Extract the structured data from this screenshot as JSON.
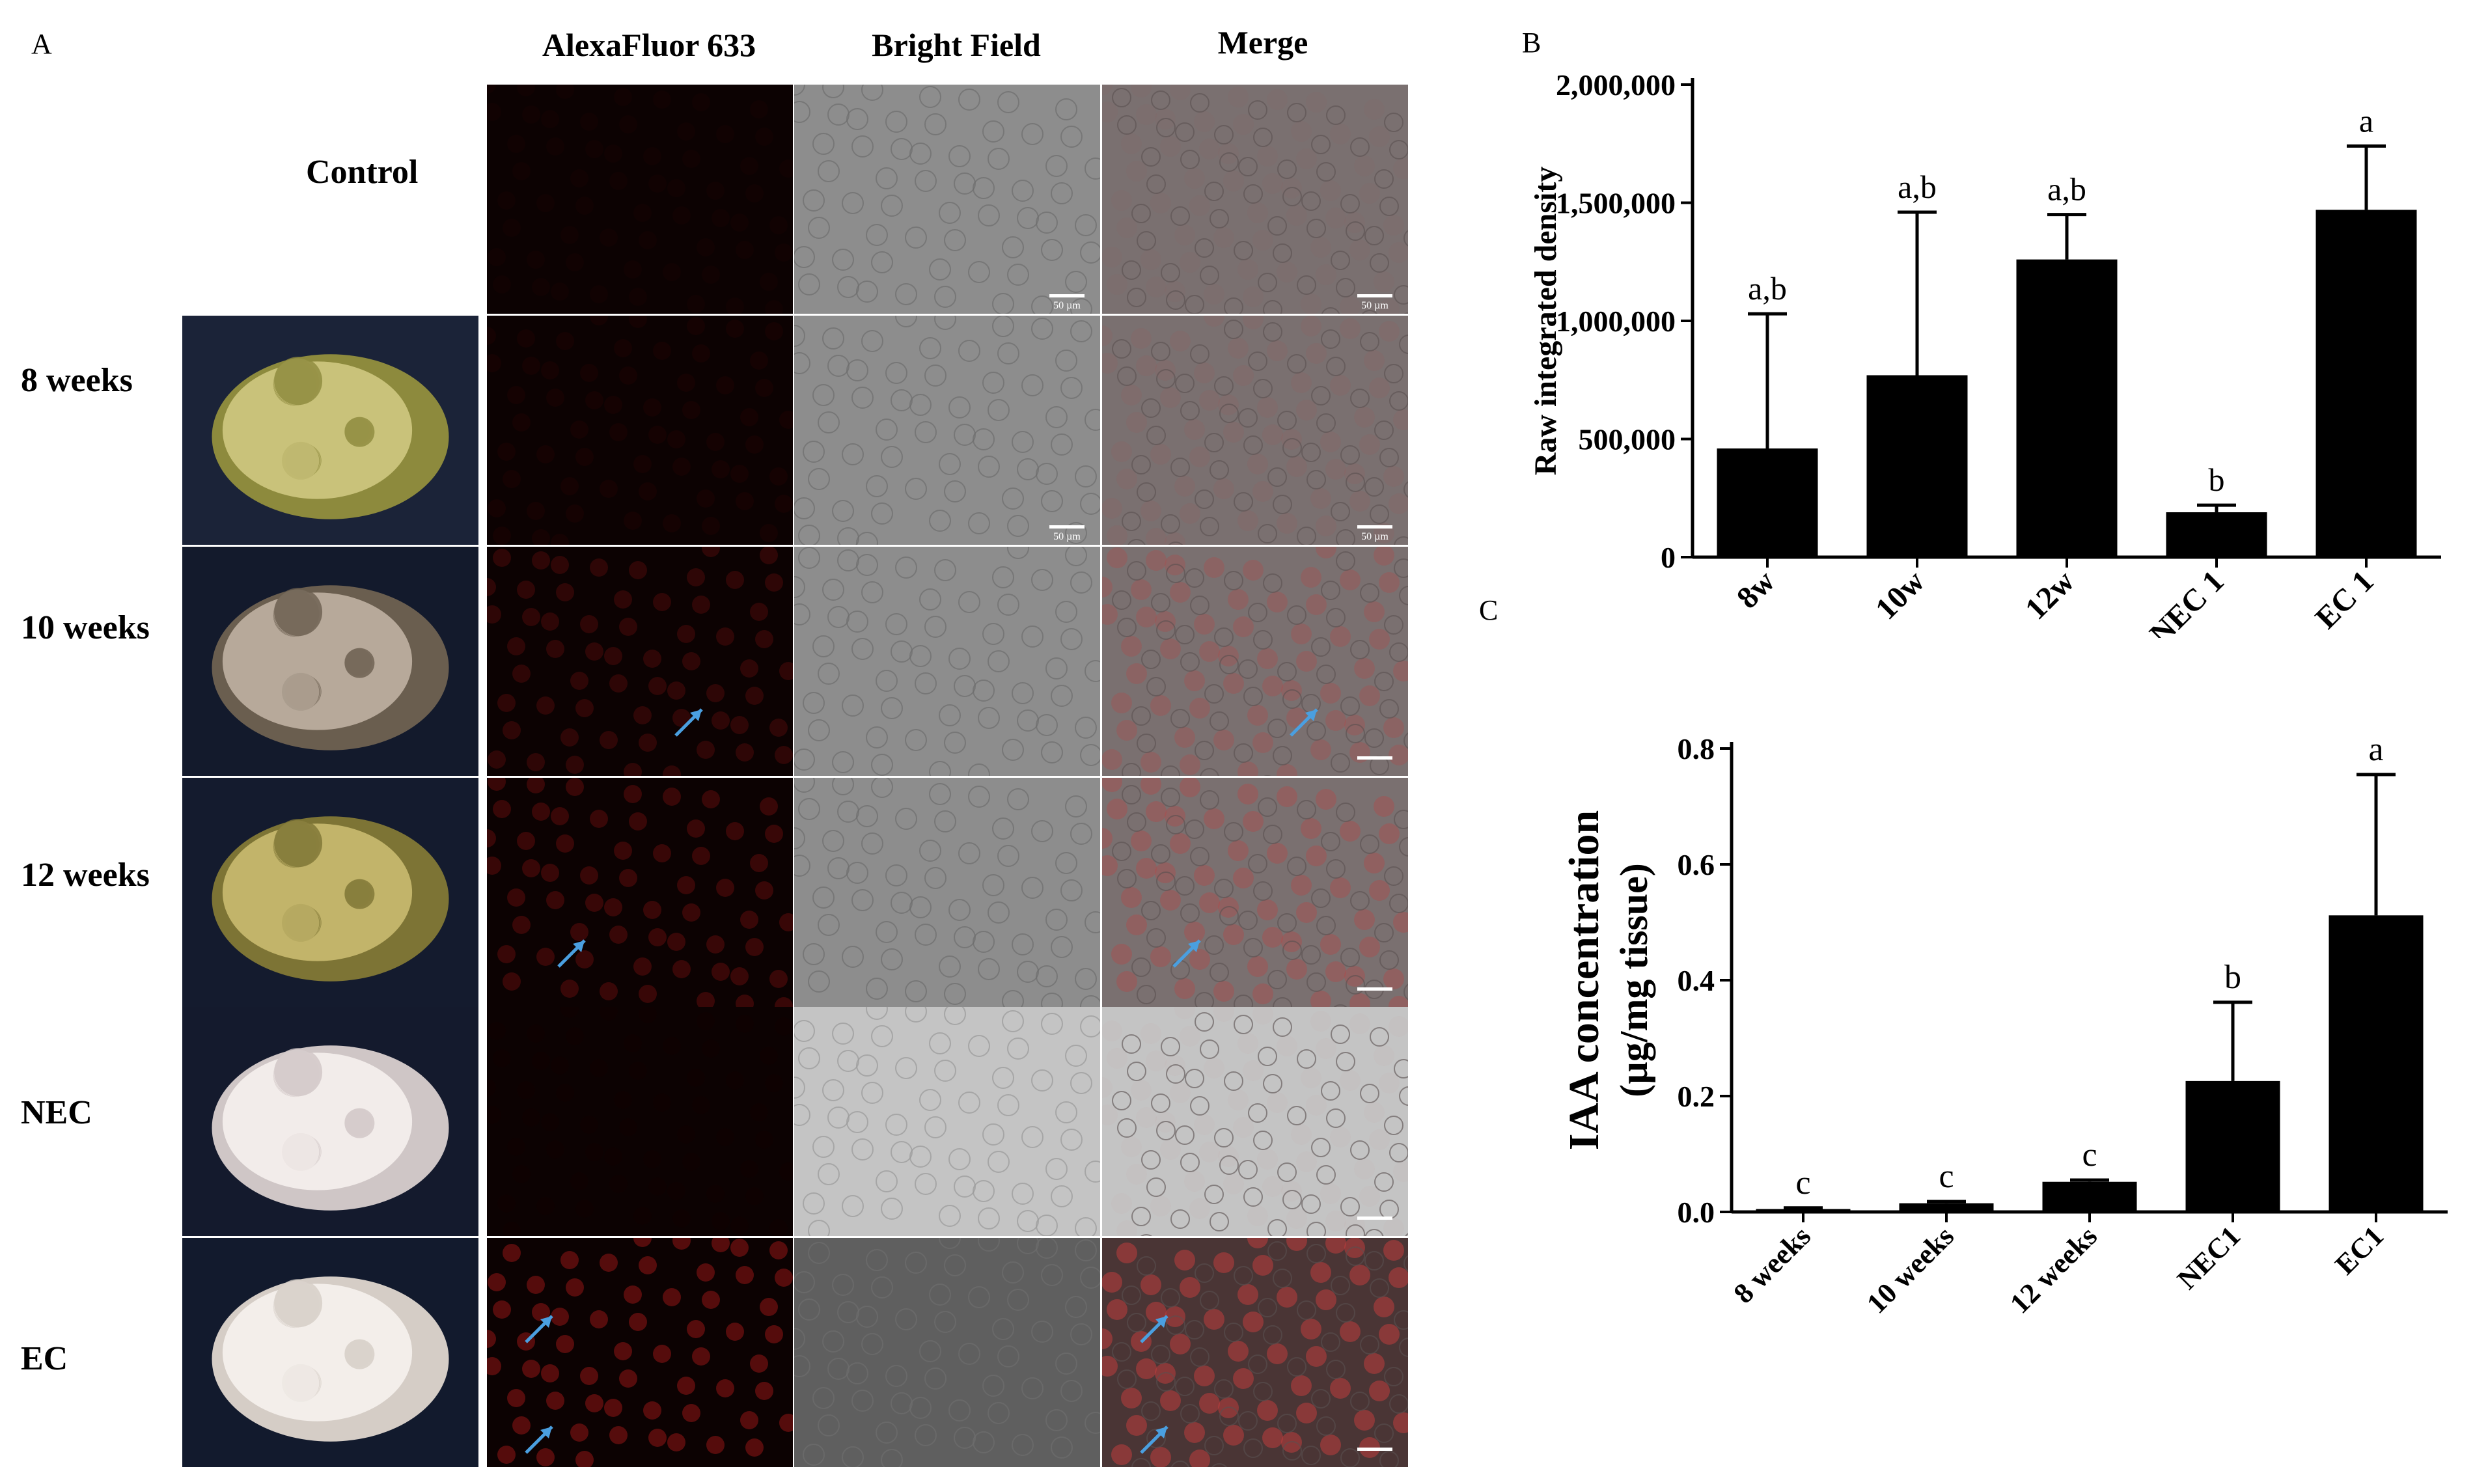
{
  "figure": {
    "panel_a_letter": "A",
    "panel_b_letter": "B",
    "panel_c_letter": "C",
    "columns": [
      "AlexaFluor 633",
      "Bright Field",
      "Merge"
    ],
    "rows": [
      "Control",
      "8 weeks",
      "10 weeks",
      "12 weeks",
      "NEC",
      "EC"
    ],
    "colors": {
      "fluor_bg": "#0c0202",
      "fluor_signal": "#b01818",
      "brightfield_bg": "#8d8d8d",
      "merge_signal": "#c23c3c",
      "arrow": "#4a9fe0",
      "scale_bar": "#ffffff",
      "bar_fill": "#000000"
    },
    "scale_bar_label": "50 µm"
  },
  "chart_data": [
    {
      "panel": "B",
      "type": "bar",
      "categories": [
        "8w",
        "10w",
        "12w",
        "NEC 1",
        "EC 1"
      ],
      "values": [
        460000,
        770000,
        1260000,
        190000,
        1470000
      ],
      "errors": [
        570000,
        690000,
        190000,
        30000,
        270000
      ],
      "significance": [
        "a,b",
        "a,b",
        "a,b",
        "b",
        "a"
      ],
      "title": "",
      "xlabel": "",
      "ylabel": "Raw integrated density",
      "ylim": [
        0,
        2000000
      ],
      "yticks": [
        0,
        500000,
        1000000,
        1500000,
        2000000
      ],
      "ytick_labels": [
        "0",
        "500,000",
        "1,000,000",
        "1,500,000",
        "2,000,000"
      ],
      "grid": false
    },
    {
      "panel": "C",
      "type": "bar",
      "categories": [
        "8 weeks",
        "10 weeks",
        "12 weeks",
        "NEC1",
        "EC1"
      ],
      "values": [
        0.005,
        0.015,
        0.052,
        0.226,
        0.512
      ],
      "errors": [
        0.002,
        0.003,
        0.003,
        0.136,
        0.243
      ],
      "significance": [
        "c",
        "c",
        "c",
        "b",
        "a"
      ],
      "title": "",
      "xlabel": "",
      "ylabel": "IAA  concentration",
      "ylabel_unit": "(µg/mg tissue)",
      "ylim": [
        0,
        0.8
      ],
      "yticks": [
        0,
        0.2,
        0.4,
        0.6,
        0.8
      ],
      "ytick_labels": [
        "0.0",
        "0.2",
        "0.4",
        "0.6",
        "0.8"
      ],
      "grid": false
    }
  ]
}
